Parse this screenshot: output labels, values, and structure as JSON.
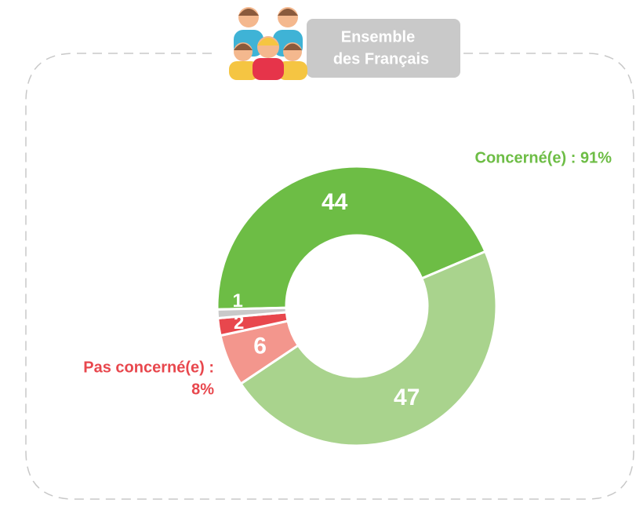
{
  "chart_data": {
    "type": "donut",
    "header": [
      "Ensemble",
      "des Français"
    ],
    "values": [
      44,
      47,
      6,
      2,
      1
    ],
    "colors": [
      "#6dbd45",
      "#a9d38d",
      "#f3968d",
      "#e8474d",
      "#c9c9c9"
    ],
    "annotations": [
      {
        "lines": [
          "Concerné(e) : 91%"
        ],
        "color": "#6dbd45"
      },
      {
        "lines": [
          "Pas concerné(e) :",
          "8%"
        ],
        "color": "#e8474d"
      }
    ]
  }
}
